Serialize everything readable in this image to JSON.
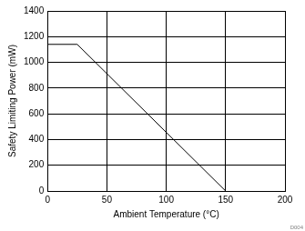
{
  "chart_data": {
    "type": "line",
    "x_label": "Ambient Temperature (°C)",
    "y_label": "Safety Limiting Power (mW)",
    "annotation": "D004",
    "x": [
      0,
      25,
      150
    ],
    "values": [
      1140,
      1140,
      0
    ],
    "color": "#000000",
    "xlim": [
      0,
      200
    ],
    "xticks": [
      0,
      50,
      100,
      150,
      200
    ],
    "ylim": [
      0,
      1400
    ],
    "yticks": [
      0,
      200,
      400,
      600,
      800,
      1000,
      1200,
      1400
    ],
    "grid": true
  }
}
